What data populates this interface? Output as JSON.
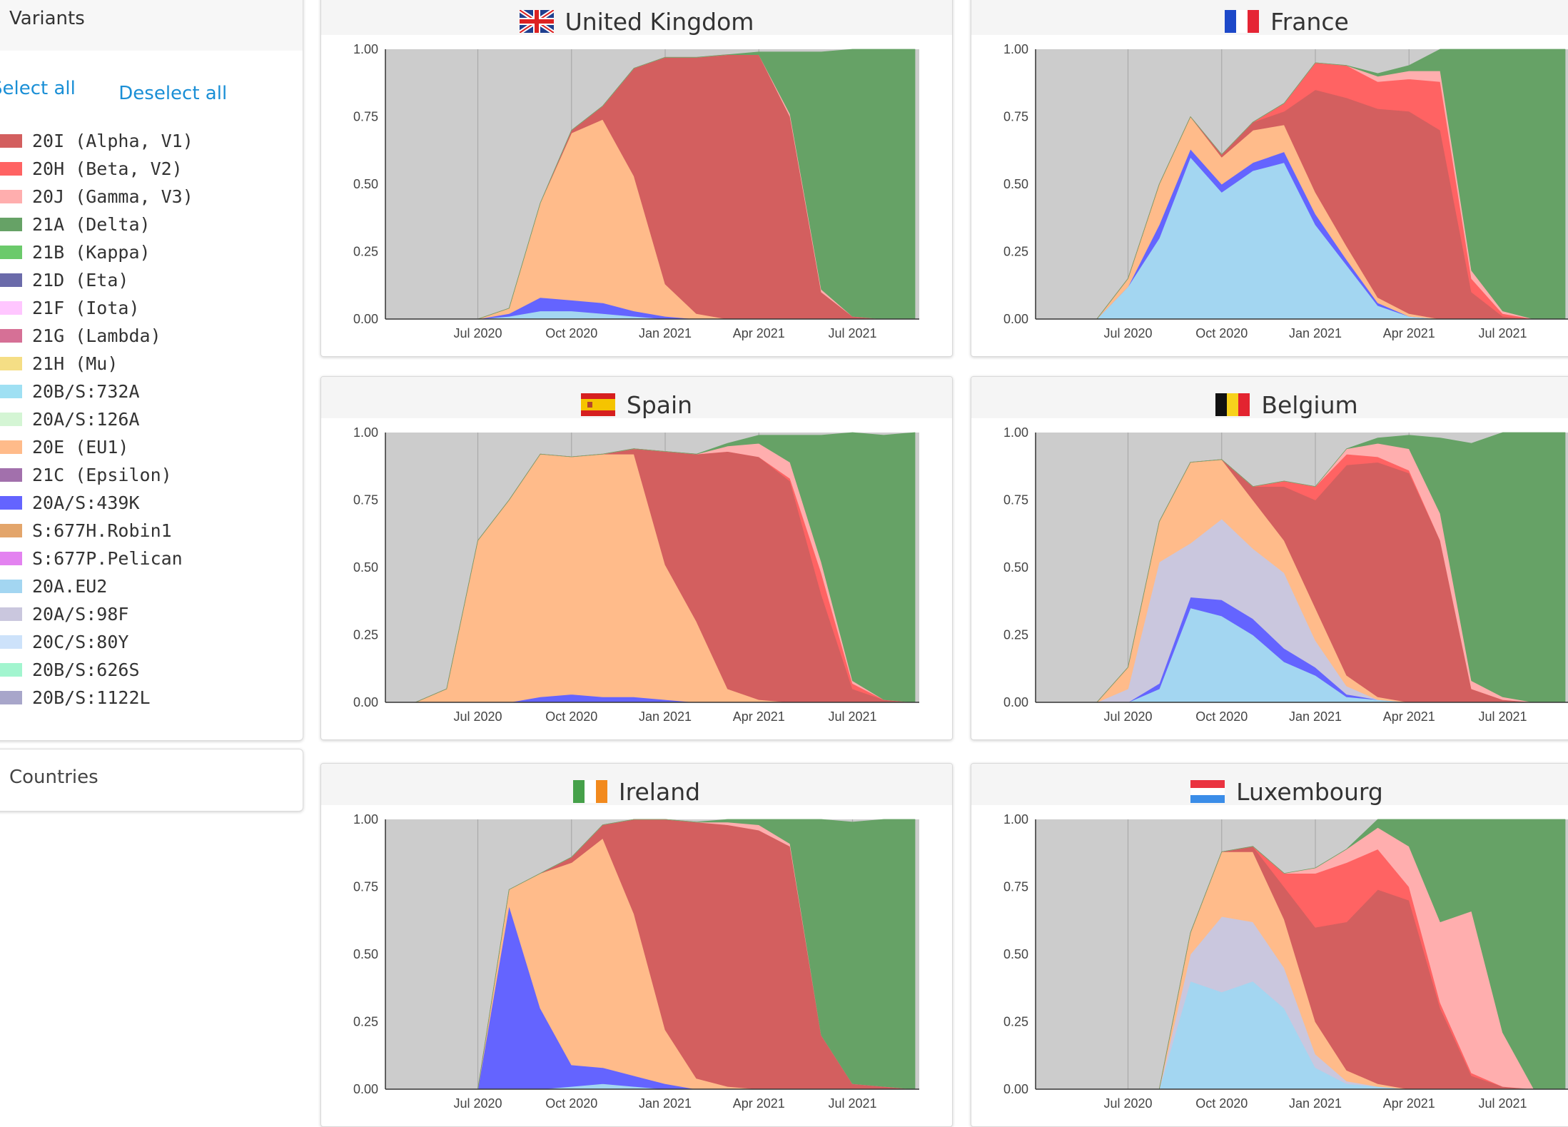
{
  "sidebar": {
    "variants_title": "Variants",
    "select_all": "Select all",
    "deselect_all": "Deselect all",
    "countries_title": "Countries"
  },
  "variants": [
    {
      "label": "20I (Alpha, V1)",
      "color": "#d35f5f"
    },
    {
      "label": "20H (Beta, V2)",
      "color": "#ff6363"
    },
    {
      "label": "20J (Gamma, V3)",
      "color": "#ffaeae"
    },
    {
      "label": "21A (Delta)",
      "color": "#66a266"
    },
    {
      "label": "21B (Kappa)",
      "color": "#6bca6b"
    },
    {
      "label": "21D (Eta)",
      "color": "#6b6baa"
    },
    {
      "label": "21F (Iota)",
      "color": "#ffc6ff"
    },
    {
      "label": "21G (Lambda)",
      "color": "#d67096"
    },
    {
      "label": "21H (Mu)",
      "color": "#f5de85"
    },
    {
      "label": "20B/S:732A",
      "color": "#9fe0f3"
    },
    {
      "label": "20A/S:126A",
      "color": "#d4f5d4"
    },
    {
      "label": "20E (EU1)",
      "color": "#ffbb8a"
    },
    {
      "label": "21C (Epsilon)",
      "color": "#a270ac"
    },
    {
      "label": "20A/S:439K",
      "color": "#6464ff"
    },
    {
      "label": "S:677H.Robin1",
      "color": "#e3a56b"
    },
    {
      "label": "S:677P.Pelican",
      "color": "#e382f0"
    },
    {
      "label": "20A.EU2",
      "color": "#a3d6f1"
    },
    {
      "label": "20A/S:98F",
      "color": "#cac7de"
    },
    {
      "label": "20C/S:80Y",
      "color": "#cde2fa"
    },
    {
      "label": "20B/S:626S",
      "color": "#a2f5cf"
    },
    {
      "label": "20B/S:1122L",
      "color": "#a8a6ca"
    }
  ],
  "countries": [
    {
      "name": "United Kingdom",
      "flag": "uk"
    },
    {
      "name": "France",
      "flag": "fr"
    },
    {
      "name": "Spain",
      "flag": "es"
    },
    {
      "name": "Belgium",
      "flag": "be"
    },
    {
      "name": "Ireland",
      "flag": "ie"
    },
    {
      "name": "Luxembourg",
      "flag": "lu"
    }
  ],
  "chart_data": {
    "type": "area",
    "stacked": true,
    "x": [
      "2020-05",
      "2020-06",
      "2020-07",
      "2020-08",
      "2020-09",
      "2020-10",
      "2020-11",
      "2020-12",
      "2021-01",
      "2021-02",
      "2021-03",
      "2021-04",
      "2021-05",
      "2021-06",
      "2021-07",
      "2021-08",
      "2021-09"
    ],
    "x_ticks": [
      "Jul 2020",
      "Oct 2020",
      "Jan 2021",
      "Apr 2021",
      "Jul 2021"
    ],
    "y_ticks": [
      "0.00",
      "0.25",
      "0.50",
      "0.75",
      "1.00"
    ],
    "ylim": [
      0,
      1
    ],
    "grid": true,
    "background": "#cccccc",
    "series_colors": {
      "20A.EU2": "#a3d6f1",
      "20A/S:439K": "#6464ff",
      "20A/S:98F": "#cac7de",
      "20E (EU1)": "#ffbb8a",
      "20I (Alpha, V1)": "#d35f5f",
      "20H (Beta, V2)": "#ff6363",
      "20J (Gamma, V3)": "#ffaeae",
      "21A (Delta)": "#66a266"
    },
    "charts": [
      {
        "country": "United Kingdom",
        "series": [
          {
            "name": "20A.EU2",
            "values": [
              0,
              0,
              0,
              0.01,
              0.03,
              0.03,
              0.02,
              0.01,
              0,
              0,
              0,
              0,
              0,
              0,
              0,
              0,
              0
            ]
          },
          {
            "name": "20A/S:439K",
            "values": [
              0,
              0,
              0,
              0.01,
              0.05,
              0.04,
              0.04,
              0.02,
              0.01,
              0,
              0,
              0,
              0,
              0,
              0,
              0,
              0
            ]
          },
          {
            "name": "20E (EU1)",
            "values": [
              0,
              0,
              0,
              0.02,
              0.35,
              0.62,
              0.68,
              0.5,
              0.12,
              0.02,
              0,
              0,
              0,
              0,
              0,
              0,
              0
            ]
          },
          {
            "name": "20I (Alpha, V1)",
            "values": [
              0,
              0,
              0,
              0,
              0,
              0.01,
              0.05,
              0.4,
              0.84,
              0.95,
              0.98,
              0.98,
              0.75,
              0.1,
              0.01,
              0,
              0
            ]
          },
          {
            "name": "20J (Gamma, V3)",
            "values": [
              0,
              0,
              0,
              0,
              0,
              0,
              0,
              0,
              0,
              0,
              0,
              0,
              0.01,
              0.01,
              0,
              0,
              0
            ]
          },
          {
            "name": "21A (Delta)",
            "values": [
              0,
              0,
              0,
              0,
              0,
              0,
              0,
              0,
              0,
              0,
              0,
              0.01,
              0.23,
              0.88,
              0.99,
              1,
              1
            ]
          }
        ]
      },
      {
        "country": "France",
        "series": [
          {
            "name": "20A.EU2",
            "values": [
              0,
              0,
              0.12,
              0.3,
              0.6,
              0.47,
              0.55,
              0.58,
              0.35,
              0.2,
              0.05,
              0.01,
              0,
              0,
              0,
              0,
              0
            ]
          },
          {
            "name": "20A/S:439K",
            "values": [
              0,
              0,
              0,
              0.05,
              0.03,
              0.03,
              0.03,
              0.04,
              0.04,
              0.02,
              0.01,
              0,
              0,
              0,
              0,
              0,
              0
            ]
          },
          {
            "name": "20E (EU1)",
            "values": [
              0,
              0,
              0.03,
              0.15,
              0.12,
              0.1,
              0.12,
              0.1,
              0.08,
              0.05,
              0.02,
              0.01,
              0,
              0,
              0,
              0,
              0
            ]
          },
          {
            "name": "20I (Alpha, V1)",
            "values": [
              0,
              0,
              0,
              0,
              0,
              0.01,
              0.03,
              0.05,
              0.38,
              0.55,
              0.7,
              0.75,
              0.7,
              0.1,
              0.01,
              0,
              0
            ]
          },
          {
            "name": "20H (Beta, V2)",
            "values": [
              0,
              0,
              0,
              0,
              0,
              0,
              0,
              0.03,
              0.1,
              0.12,
              0.1,
              0.12,
              0.18,
              0.05,
              0.01,
              0,
              0
            ]
          },
          {
            "name": "20J (Gamma, V3)",
            "values": [
              0,
              0,
              0,
              0,
              0,
              0,
              0,
              0,
              0,
              0,
              0.02,
              0.03,
              0.04,
              0.03,
              0.01,
              0,
              0
            ]
          },
          {
            "name": "21A (Delta)",
            "values": [
              0,
              0,
              0,
              0,
              0,
              0,
              0,
              0,
              0,
              0,
              0.01,
              0.02,
              0.08,
              0.82,
              0.97,
              1,
              1
            ]
          }
        ]
      },
      {
        "country": "Spain",
        "series": [
          {
            "name": "20A/S:439K",
            "values": [
              0,
              0,
              0,
              0,
              0.02,
              0.03,
              0.02,
              0.02,
              0.01,
              0,
              0,
              0,
              0,
              0,
              0,
              0,
              0
            ]
          },
          {
            "name": "20E (EU1)",
            "values": [
              0,
              0.05,
              0.6,
              0.75,
              0.9,
              0.88,
              0.9,
              0.9,
              0.5,
              0.3,
              0.05,
              0.01,
              0,
              0,
              0,
              0,
              0
            ]
          },
          {
            "name": "20I (Alpha, V1)",
            "values": [
              0,
              0,
              0,
              0,
              0,
              0,
              0,
              0.02,
              0.42,
              0.62,
              0.88,
              0.9,
              0.82,
              0.4,
              0.05,
              0.01,
              0
            ]
          },
          {
            "name": "20H (Beta, V2)",
            "values": [
              0,
              0,
              0,
              0,
              0,
              0,
              0,
              0,
              0,
              0,
              0,
              0,
              0.01,
              0.08,
              0.02,
              0,
              0
            ]
          },
          {
            "name": "20J (Gamma, V3)",
            "values": [
              0,
              0,
              0,
              0,
              0,
              0,
              0,
              0,
              0,
              0,
              0.02,
              0.05,
              0.06,
              0.04,
              0.01,
              0,
              0
            ]
          },
          {
            "name": "21A (Delta)",
            "values": [
              0,
              0,
              0,
              0,
              0,
              0,
              0,
              0,
              0,
              0,
              0.01,
              0.03,
              0.1,
              0.47,
              0.92,
              0.98,
              1
            ]
          }
        ]
      },
      {
        "country": "Belgium",
        "series": [
          {
            "name": "20A.EU2",
            "values": [
              0,
              0,
              0,
              0.05,
              0.35,
              0.32,
              0.25,
              0.15,
              0.1,
              0.02,
              0.01,
              0,
              0,
              0,
              0,
              0,
              0
            ]
          },
          {
            "name": "20A/S:439K",
            "values": [
              0,
              0,
              0,
              0.02,
              0.04,
              0.06,
              0.06,
              0.05,
              0.03,
              0.01,
              0,
              0,
              0,
              0,
              0,
              0,
              0
            ]
          },
          {
            "name": "20A/S:98F",
            "values": [
              0,
              0,
              0.05,
              0.45,
              0.2,
              0.3,
              0.26,
              0.28,
              0.1,
              0.03,
              0,
              0,
              0,
              0,
              0,
              0,
              0
            ]
          },
          {
            "name": "20E (EU1)",
            "values": [
              0,
              0,
              0.08,
              0.15,
              0.3,
              0.22,
              0.18,
              0.12,
              0.12,
              0.04,
              0.01,
              0,
              0,
              0,
              0,
              0,
              0
            ]
          },
          {
            "name": "20I (Alpha, V1)",
            "values": [
              0,
              0,
              0,
              0,
              0,
              0,
              0.05,
              0.2,
              0.4,
              0.78,
              0.87,
              0.85,
              0.6,
              0.05,
              0.01,
              0,
              0
            ]
          },
          {
            "name": "20H (Beta, V2)",
            "values": [
              0,
              0,
              0,
              0,
              0,
              0,
              0,
              0.02,
              0.05,
              0.04,
              0.02,
              0.01,
              0,
              0,
              0,
              0,
              0
            ]
          },
          {
            "name": "20J (Gamma, V3)",
            "values": [
              0,
              0,
              0,
              0,
              0,
              0,
              0,
              0,
              0,
              0.02,
              0.05,
              0.08,
              0.1,
              0.03,
              0.01,
              0,
              0
            ]
          },
          {
            "name": "21A (Delta)",
            "values": [
              0,
              0,
              0,
              0,
              0,
              0,
              0,
              0,
              0,
              0,
              0.02,
              0.05,
              0.28,
              0.88,
              0.98,
              1,
              1
            ]
          }
        ]
      },
      {
        "country": "Ireland",
        "series": [
          {
            "name": "20A.EU2",
            "values": [
              0,
              0,
              0,
              0,
              0,
              0.01,
              0.02,
              0.01,
              0,
              0,
              0,
              0,
              0,
              0,
              0,
              0,
              0
            ]
          },
          {
            "name": "20A/S:439K",
            "values": [
              0,
              0,
              0,
              0.68,
              0.3,
              0.08,
              0.06,
              0.04,
              0.02,
              0,
              0,
              0,
              0,
              0,
              0,
              0,
              0
            ]
          },
          {
            "name": "20E (EU1)",
            "values": [
              0,
              0,
              0,
              0.06,
              0.5,
              0.75,
              0.85,
              0.6,
              0.2,
              0.04,
              0.01,
              0,
              0,
              0,
              0,
              0,
              0
            ]
          },
          {
            "name": "20I (Alpha, V1)",
            "values": [
              0,
              0,
              0,
              0,
              0,
              0.02,
              0.05,
              0.35,
              0.78,
              0.95,
              0.97,
              0.96,
              0.9,
              0.2,
              0.02,
              0.01,
              0
            ]
          },
          {
            "name": "20J (Gamma, V3)",
            "values": [
              0,
              0,
              0,
              0,
              0,
              0,
              0,
              0,
              0,
              0,
              0.01,
              0.02,
              0.01,
              0,
              0,
              0,
              0
            ]
          },
          {
            "name": "21A (Delta)",
            "values": [
              0,
              0,
              0,
              0,
              0,
              0,
              0,
              0,
              0,
              0,
              0.01,
              0.02,
              0.09,
              0.8,
              0.97,
              0.99,
              1
            ]
          }
        ]
      },
      {
        "country": "Luxembourg",
        "series": [
          {
            "name": "20A.EU2",
            "values": [
              0,
              0,
              0,
              0,
              0.4,
              0.36,
              0.4,
              0.3,
              0.08,
              0.02,
              0.01,
              0,
              0,
              0,
              0,
              0,
              0
            ]
          },
          {
            "name": "20A/S:98F",
            "values": [
              0,
              0,
              0,
              0,
              0.1,
              0.28,
              0.22,
              0.15,
              0.05,
              0.01,
              0,
              0,
              0,
              0,
              0,
              0,
              0
            ]
          },
          {
            "name": "20E (EU1)",
            "values": [
              0,
              0,
              0,
              0,
              0.08,
              0.24,
              0.26,
              0.18,
              0.12,
              0.04,
              0.01,
              0,
              0,
              0,
              0,
              0,
              0
            ]
          },
          {
            "name": "20I (Alpha, V1)",
            "values": [
              0,
              0,
              0,
              0,
              0,
              0,
              0.02,
              0.12,
              0.35,
              0.55,
              0.72,
              0.7,
              0.3,
              0.05,
              0.01,
              0,
              0
            ]
          },
          {
            "name": "20H (Beta, V2)",
            "values": [
              0,
              0,
              0,
              0,
              0,
              0,
              0,
              0.05,
              0.2,
              0.22,
              0.15,
              0.05,
              0.02,
              0.01,
              0,
              0,
              0
            ]
          },
          {
            "name": "20J (Gamma, V3)",
            "values": [
              0,
              0,
              0,
              0,
              0,
              0,
              0,
              0,
              0.02,
              0.05,
              0.08,
              0.15,
              0.3,
              0.6,
              0.2,
              0,
              0
            ]
          },
          {
            "name": "21A (Delta)",
            "values": [
              0,
              0,
              0,
              0,
              0,
              0,
              0,
              0,
              0,
              0,
              0.03,
              0.1,
              0.38,
              0.34,
              0.79,
              1,
              1
            ]
          }
        ]
      }
    ]
  }
}
